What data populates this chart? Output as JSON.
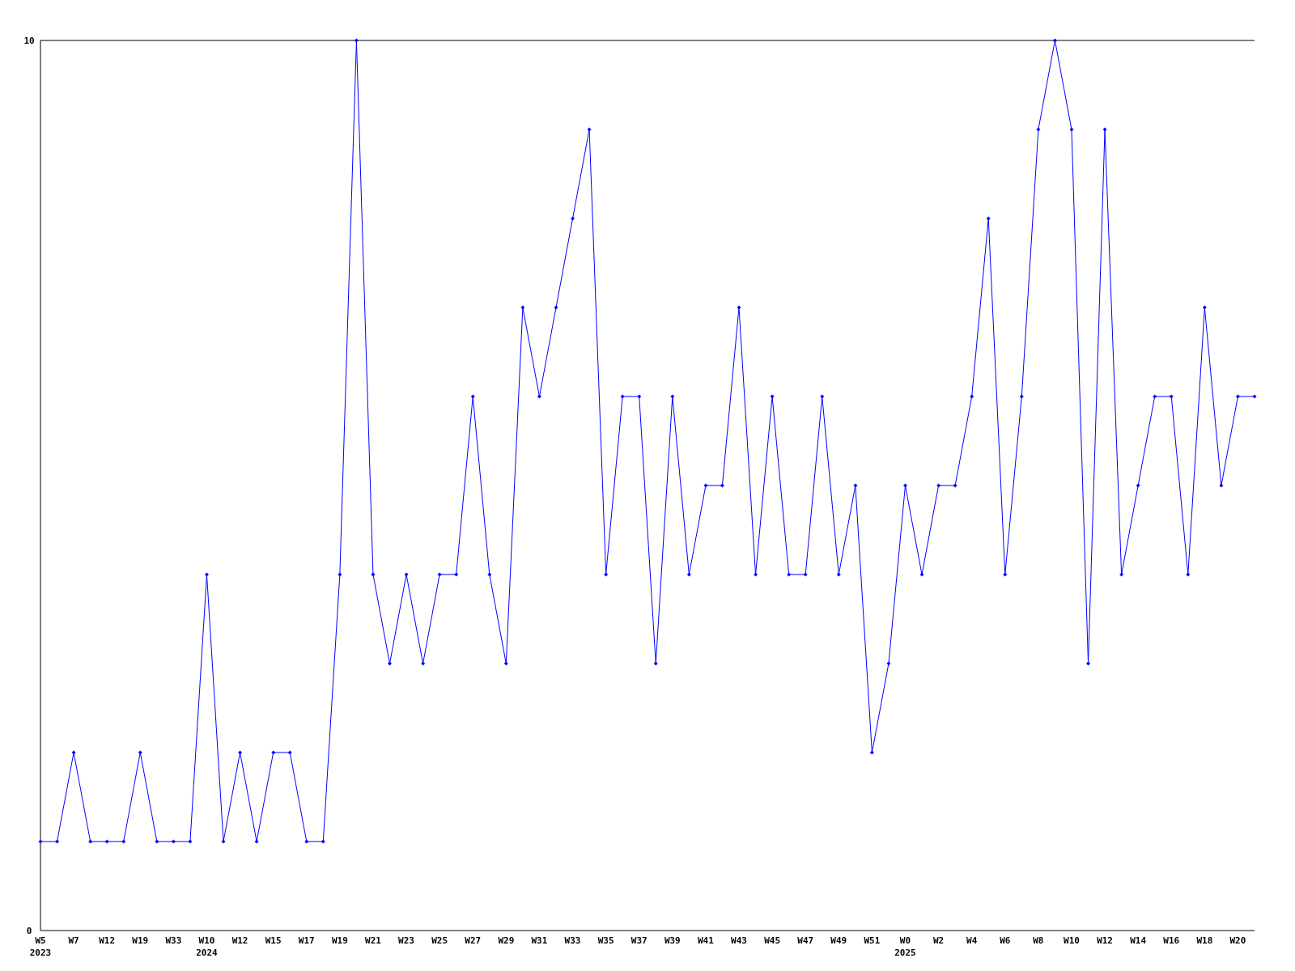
{
  "chart_data": {
    "type": "line",
    "categories": [
      "W5\n2023",
      null,
      "W7",
      null,
      "W12",
      null,
      "W19",
      null,
      "W33",
      null,
      "W10\n2024",
      null,
      "W12",
      null,
      "W15",
      null,
      "W17",
      null,
      "W19",
      null,
      "W21",
      null,
      "W23",
      null,
      "W25",
      null,
      "W27",
      null,
      "W29",
      null,
      "W31",
      null,
      "W33",
      null,
      "W35",
      null,
      "W37",
      null,
      "W39",
      null,
      "W41",
      null,
      "W43",
      null,
      "W45",
      null,
      "W47",
      null,
      "W49",
      null,
      "W51",
      null,
      "W0\n2025",
      null,
      "W2",
      null,
      "W4",
      null,
      "W6",
      null,
      "W8",
      null,
      "W10",
      null,
      "W12",
      null,
      "W14",
      null,
      "W16",
      null,
      "W18",
      null,
      "W20",
      null
    ],
    "series": [
      {
        "color": "#0000ff",
        "values": [
          1,
          1,
          2,
          1,
          1,
          1,
          2,
          1,
          1,
          1,
          4,
          1,
          2,
          1,
          2,
          2,
          1,
          1,
          4,
          10,
          4,
          3,
          4,
          3,
          4,
          4,
          6,
          4,
          3,
          7,
          6,
          7,
          8,
          9,
          4,
          6,
          6,
          3,
          6,
          4,
          5,
          5,
          7,
          4,
          6,
          4,
          4,
          6,
          4,
          5,
          2,
          3,
          5,
          4,
          5,
          5,
          6,
          8,
          4,
          6,
          9,
          10,
          9,
          3,
          9,
          4,
          5,
          6,
          6,
          4,
          7,
          5,
          6,
          6
        ]
      }
    ],
    "ylim": [
      0,
      10
    ],
    "yticks": [
      0,
      10
    ],
    "marker": "diamond",
    "grid": false
  }
}
